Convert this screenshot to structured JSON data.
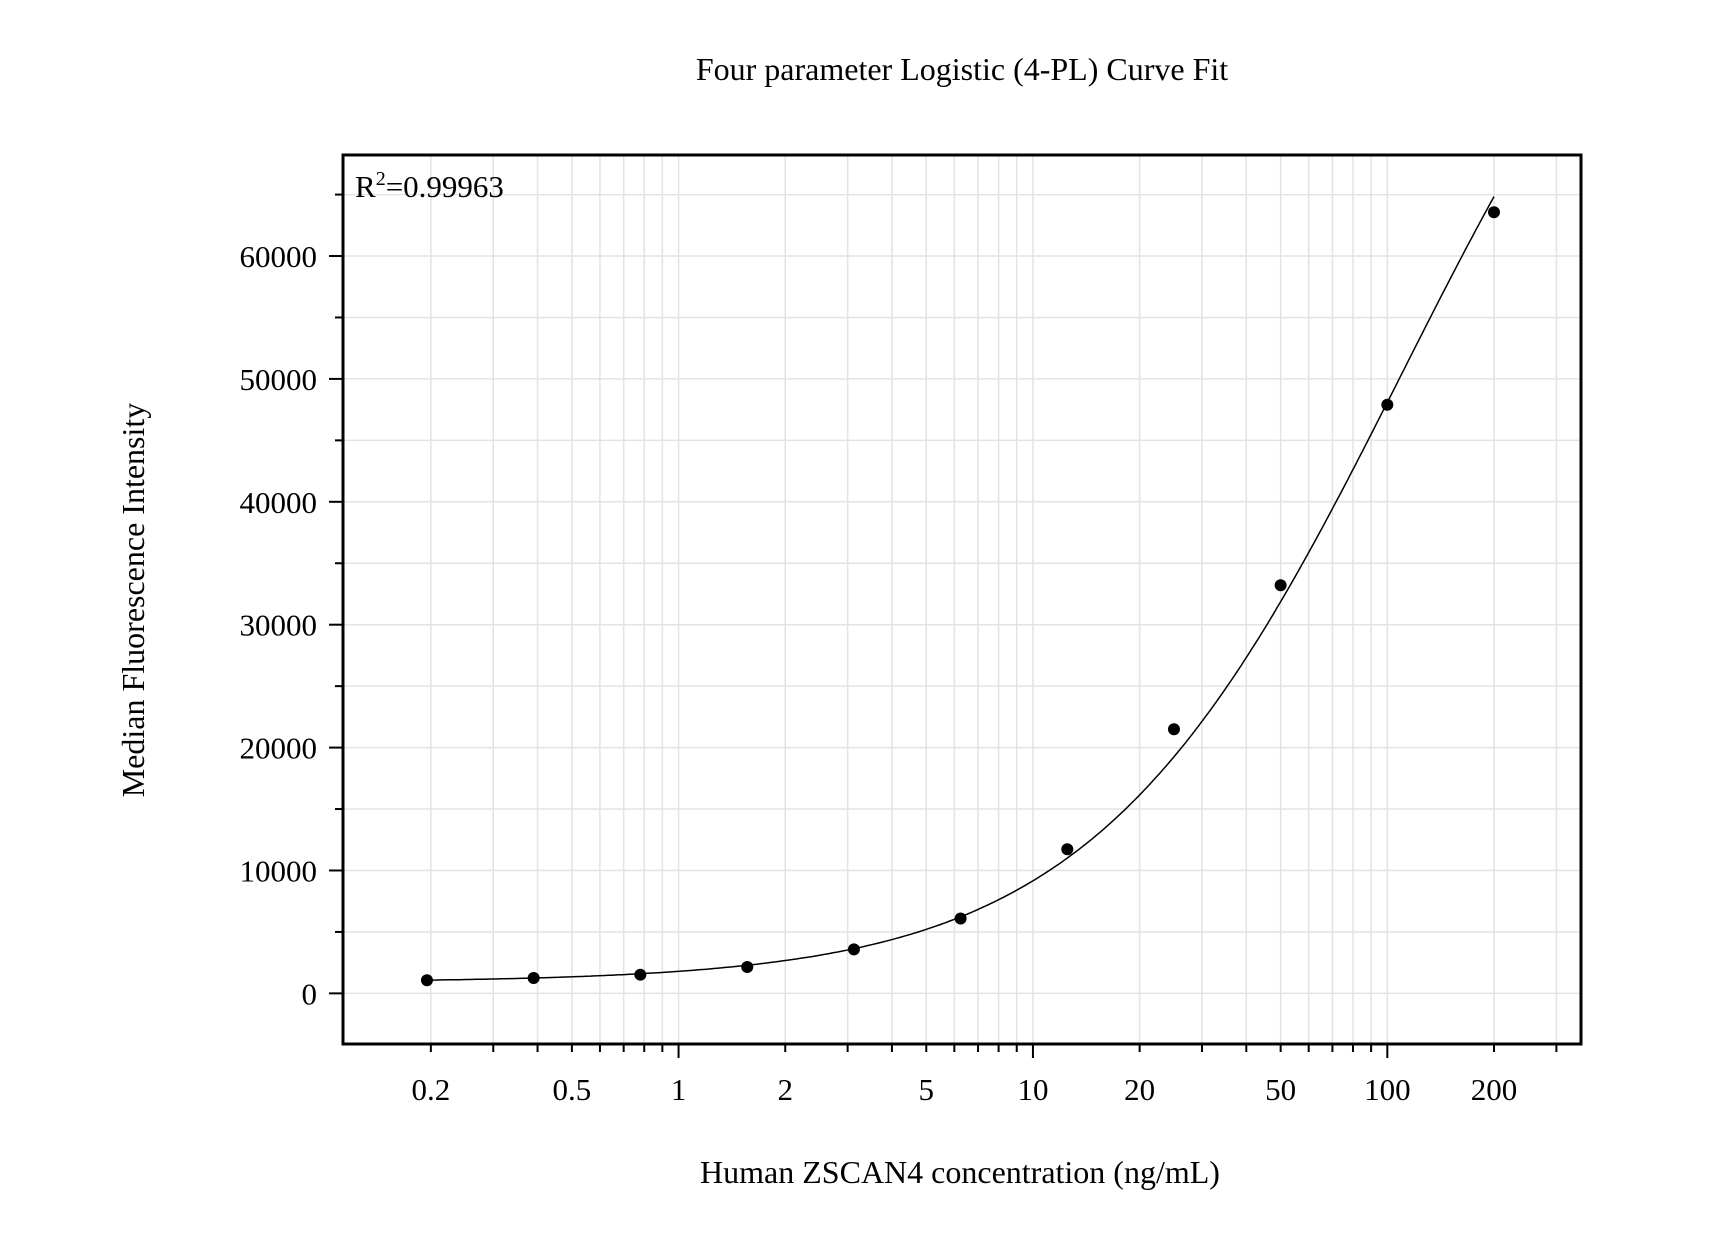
{
  "chart_data": {
    "type": "scatter",
    "title": "Four parameter Logistic (4-PL) Curve Fit",
    "xlabel": "Human ZSCAN4 concentration (ng/mL)",
    "ylabel": "Median Fluorescence Intensity",
    "annotation": {
      "base": "R",
      "sup": "2",
      "rest": "=0.99963"
    },
    "x_scale": "log",
    "xlim": [
      0.113,
      352
    ],
    "ylim": [
      -4120,
      68220
    ],
    "x_ticks": [
      0.2,
      0.5,
      1,
      2,
      5,
      10,
      20,
      50,
      100,
      200
    ],
    "x_tick_labels": [
      "0.2",
      "0.5",
      "1",
      "2",
      "5",
      "10",
      "20",
      "50",
      "100",
      "200"
    ],
    "y_ticks": [
      0,
      10000,
      20000,
      30000,
      40000,
      50000,
      60000
    ],
    "y_tick_labels": [
      "0",
      "10000",
      "20000",
      "30000",
      "40000",
      "50000",
      "60000"
    ],
    "grid": true,
    "fit_curve": "4-PL",
    "marker_color": "#000000",
    "line_color": "#000000",
    "grid_color": "#e3e3e3",
    "points": {
      "x": [
        0.195,
        0.39,
        0.78,
        1.5625,
        3.125,
        6.25,
        12.5,
        25,
        50,
        100,
        200
      ],
      "y": [
        1070,
        1250,
        1520,
        2150,
        3580,
        6090,
        11730,
        21490,
        33210,
        47900,
        63560
      ]
    }
  }
}
